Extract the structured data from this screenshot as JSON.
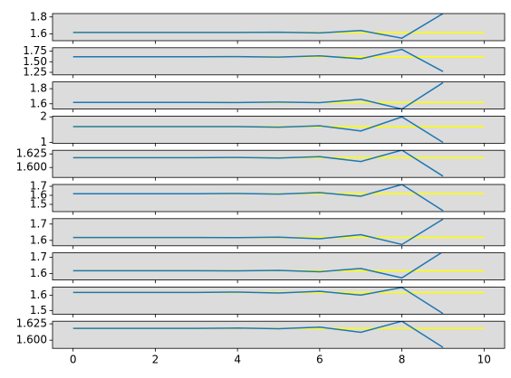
{
  "chart_data": [
    {
      "type": "line",
      "xlim": [
        -0.5,
        10.5
      ],
      "xticks": [
        0,
        2,
        4,
        6,
        8,
        10
      ],
      "ylim": [
        1.52,
        1.84
      ],
      "yticks": [
        1.6,
        1.8
      ],
      "background": "#dcdcdc",
      "series": [
        {
          "color": "#ffff00",
          "x": [
            0,
            1,
            2,
            3,
            4,
            5,
            6,
            7,
            8,
            9,
            10
          ],
          "values": [
            1.618,
            1.618,
            1.618,
            1.618,
            1.618,
            1.618,
            1.618,
            1.618,
            1.618,
            1.618,
            1.618
          ]
        },
        {
          "color": "#1f77b4",
          "x": [
            0,
            1,
            2,
            3,
            4,
            5,
            6,
            7,
            8,
            9
          ],
          "values": [
            1.618,
            1.618,
            1.618,
            1.618,
            1.617,
            1.62,
            1.612,
            1.64,
            1.55,
            1.84
          ]
        }
      ]
    },
    {
      "type": "line",
      "xlim": [
        -0.5,
        10.5
      ],
      "xticks": [
        0,
        2,
        4,
        6,
        8,
        10
      ],
      "ylim": [
        1.19,
        1.83
      ],
      "yticks": [
        {
          "value": 1.25,
          "label": "1.25"
        },
        {
          "value": 1.5,
          "label": "1.50"
        },
        {
          "value": 1.75,
          "label": "1.75"
        }
      ],
      "background": "#dcdcdc",
      "series": [
        {
          "color": "#ffff00",
          "x": [
            0,
            1,
            2,
            3,
            4,
            5,
            6,
            7,
            8,
            9,
            10
          ],
          "values": [
            1.618,
            1.618,
            1.618,
            1.618,
            1.618,
            1.618,
            1.618,
            1.618,
            1.618,
            1.618,
            1.618
          ]
        },
        {
          "color": "#1f77b4",
          "x": [
            0,
            1,
            2,
            3,
            4,
            5,
            6,
            7,
            8,
            9
          ],
          "values": [
            1.618,
            1.618,
            1.618,
            1.618,
            1.62,
            1.61,
            1.64,
            1.57,
            1.79,
            1.27
          ]
        }
      ]
    },
    {
      "type": "line",
      "xlim": [
        -0.5,
        10.5
      ],
      "xticks": [
        0,
        2,
        4,
        6,
        8,
        10
      ],
      "ylim": [
        1.53,
        1.89
      ],
      "yticks": [
        1.6,
        1.8
      ],
      "background": "#dcdcdc",
      "series": [
        {
          "color": "#ffff00",
          "x": [
            0,
            1,
            2,
            3,
            4,
            5,
            6,
            7,
            8,
            9,
            10
          ],
          "values": [
            1.618,
            1.618,
            1.618,
            1.618,
            1.618,
            1.618,
            1.618,
            1.618,
            1.618,
            1.618,
            1.618
          ]
        },
        {
          "color": "#1f77b4",
          "x": [
            0,
            1,
            2,
            3,
            4,
            5,
            6,
            7,
            8,
            9
          ],
          "values": [
            1.618,
            1.618,
            1.618,
            1.618,
            1.617,
            1.622,
            1.615,
            1.66,
            1.53,
            1.88
          ]
        }
      ]
    },
    {
      "type": "line",
      "xlim": [
        -0.5,
        10.5
      ],
      "xticks": [
        0,
        2,
        4,
        6,
        8,
        10
      ],
      "ylim": [
        0.97,
        2.03
      ],
      "yticks": [
        1,
        2
      ],
      "background": "#dcdcdc",
      "series": [
        {
          "color": "#ffff00",
          "x": [
            0,
            1,
            2,
            3,
            4,
            5,
            6,
            7,
            8,
            9,
            10
          ],
          "values": [
            1.618,
            1.618,
            1.618,
            1.618,
            1.618,
            1.618,
            1.618,
            1.618,
            1.618,
            1.618,
            1.618
          ]
        },
        {
          "color": "#1f77b4",
          "x": [
            0,
            1,
            2,
            3,
            4,
            5,
            6,
            7,
            8,
            9
          ],
          "values": [
            1.618,
            1.618,
            1.618,
            1.618,
            1.618,
            1.6,
            1.65,
            1.45,
            2.0,
            1.0
          ]
        }
      ]
    },
    {
      "type": "line",
      "xlim": [
        -0.5,
        10.5
      ],
      "xticks": [
        0,
        2,
        4,
        6,
        8,
        10
      ],
      "ylim": [
        1.5817,
        1.6317
      ],
      "yticks": [
        {
          "value": 1.6,
          "label": "1.600"
        },
        {
          "value": 1.625,
          "label": "1.625"
        }
      ],
      "background": "#dcdcdc",
      "series": [
        {
          "color": "#ffff00",
          "x": [
            0,
            1,
            2,
            3,
            4,
            5,
            6,
            7,
            8,
            9,
            10
          ],
          "values": [
            1.618,
            1.618,
            1.618,
            1.618,
            1.618,
            1.618,
            1.618,
            1.618,
            1.618,
            1.618,
            1.618
          ]
        },
        {
          "color": "#1f77b4",
          "x": [
            0,
            1,
            2,
            3,
            4,
            5,
            6,
            7,
            8,
            9
          ],
          "values": [
            1.618,
            1.618,
            1.618,
            1.618,
            1.6185,
            1.6175,
            1.62,
            1.611,
            1.632,
            1.584
          ]
        }
      ]
    },
    {
      "type": "line",
      "xlim": [
        -0.5,
        10.5
      ],
      "xticks": [
        0,
        2,
        4,
        6,
        8,
        10
      ],
      "ylim": [
        1.42,
        1.72
      ],
      "yticks": [
        1.5,
        1.6,
        1.7
      ],
      "background": "#dcdcdc",
      "series": [
        {
          "color": "#ffff00",
          "x": [
            0,
            1,
            2,
            3,
            4,
            5,
            6,
            7,
            8,
            9,
            10
          ],
          "values": [
            1.618,
            1.618,
            1.618,
            1.618,
            1.618,
            1.618,
            1.618,
            1.618,
            1.618,
            1.618,
            1.618
          ]
        },
        {
          "color": "#1f77b4",
          "x": [
            0,
            1,
            2,
            3,
            4,
            5,
            6,
            7,
            8,
            9
          ],
          "values": [
            1.618,
            1.618,
            1.618,
            1.618,
            1.62,
            1.614,
            1.63,
            1.59,
            1.72,
            1.43
          ]
        }
      ]
    },
    {
      "type": "line",
      "xlim": [
        -0.5,
        10.5
      ],
      "xticks": [
        0,
        2,
        4,
        6,
        8,
        10
      ],
      "ylim": [
        1.567,
        1.733
      ],
      "yticks": [
        1.6,
        1.7
      ],
      "background": "#dcdcdc",
      "series": [
        {
          "color": "#ffff00",
          "x": [
            0,
            1,
            2,
            3,
            4,
            5,
            6,
            7,
            8,
            9,
            10
          ],
          "values": [
            1.618,
            1.618,
            1.618,
            1.618,
            1.618,
            1.618,
            1.618,
            1.618,
            1.618,
            1.618,
            1.618
          ]
        },
        {
          "color": "#1f77b4",
          "x": [
            0,
            1,
            2,
            3,
            4,
            5,
            6,
            7,
            8,
            9
          ],
          "values": [
            1.618,
            1.618,
            1.618,
            1.618,
            1.617,
            1.62,
            1.61,
            1.635,
            1.575,
            1.73
          ]
        }
      ]
    },
    {
      "type": "line",
      "xlim": [
        -0.5,
        10.5
      ],
      "xticks": [
        0,
        2,
        4,
        6,
        8,
        10
      ],
      "ylim": [
        1.561,
        1.728
      ],
      "yticks": [
        1.6,
        1.7
      ],
      "background": "#dcdcdc",
      "series": [
        {
          "color": "#ffff00",
          "x": [
            0,
            1,
            2,
            3,
            4,
            5,
            6,
            7,
            8,
            9,
            10
          ],
          "values": [
            1.618,
            1.618,
            1.618,
            1.618,
            1.618,
            1.618,
            1.618,
            1.618,
            1.618,
            1.618,
            1.618
          ]
        },
        {
          "color": "#1f77b4",
          "x": [
            0,
            1,
            2,
            3,
            4,
            5,
            6,
            7,
            8,
            9
          ],
          "values": [
            1.618,
            1.618,
            1.618,
            1.618,
            1.617,
            1.62,
            1.612,
            1.632,
            1.574,
            1.735
          ]
        }
      ]
    },
    {
      "type": "line",
      "xlim": [
        -0.5,
        10.5
      ],
      "xticks": [
        0,
        2,
        4,
        6,
        8,
        10
      ],
      "ylim": [
        1.476,
        1.653
      ],
      "yticks": [
        1.5,
        1.6
      ],
      "background": "#dcdcdc",
      "series": [
        {
          "color": "#ffff00",
          "x": [
            0,
            1,
            2,
            3,
            4,
            5,
            6,
            7,
            8,
            9,
            10
          ],
          "values": [
            1.618,
            1.618,
            1.618,
            1.618,
            1.618,
            1.618,
            1.618,
            1.618,
            1.618,
            1.618,
            1.618
          ]
        },
        {
          "color": "#1f77b4",
          "x": [
            0,
            1,
            2,
            3,
            4,
            5,
            6,
            7,
            8,
            9
          ],
          "values": [
            1.618,
            1.618,
            1.618,
            1.618,
            1.62,
            1.614,
            1.625,
            1.6,
            1.65,
            1.48
          ]
        }
      ]
    },
    {
      "type": "line",
      "xlim": [
        -0.5,
        10.5
      ],
      "xticks": [
        0,
        2,
        4,
        6,
        8,
        10
      ],
      "ylim": [
        1.5875,
        1.629
      ],
      "yticks": [
        {
          "value": 1.6,
          "label": "1.600"
        },
        {
          "value": 1.625,
          "label": "1.625"
        }
      ],
      "background": "#dcdcdc",
      "series": [
        {
          "color": "#ffff00",
          "x": [
            0,
            1,
            2,
            3,
            4,
            5,
            6,
            7,
            8,
            9,
            10
          ],
          "values": [
            1.618,
            1.618,
            1.618,
            1.618,
            1.618,
            1.618,
            1.618,
            1.618,
            1.618,
            1.618,
            1.618
          ]
        },
        {
          "color": "#1f77b4",
          "x": [
            0,
            1,
            2,
            3,
            4,
            5,
            6,
            7,
            8,
            9
          ],
          "values": [
            1.618,
            1.618,
            1.618,
            1.618,
            1.6185,
            1.6175,
            1.62,
            1.612,
            1.629,
            1.589
          ]
        }
      ]
    }
  ]
}
